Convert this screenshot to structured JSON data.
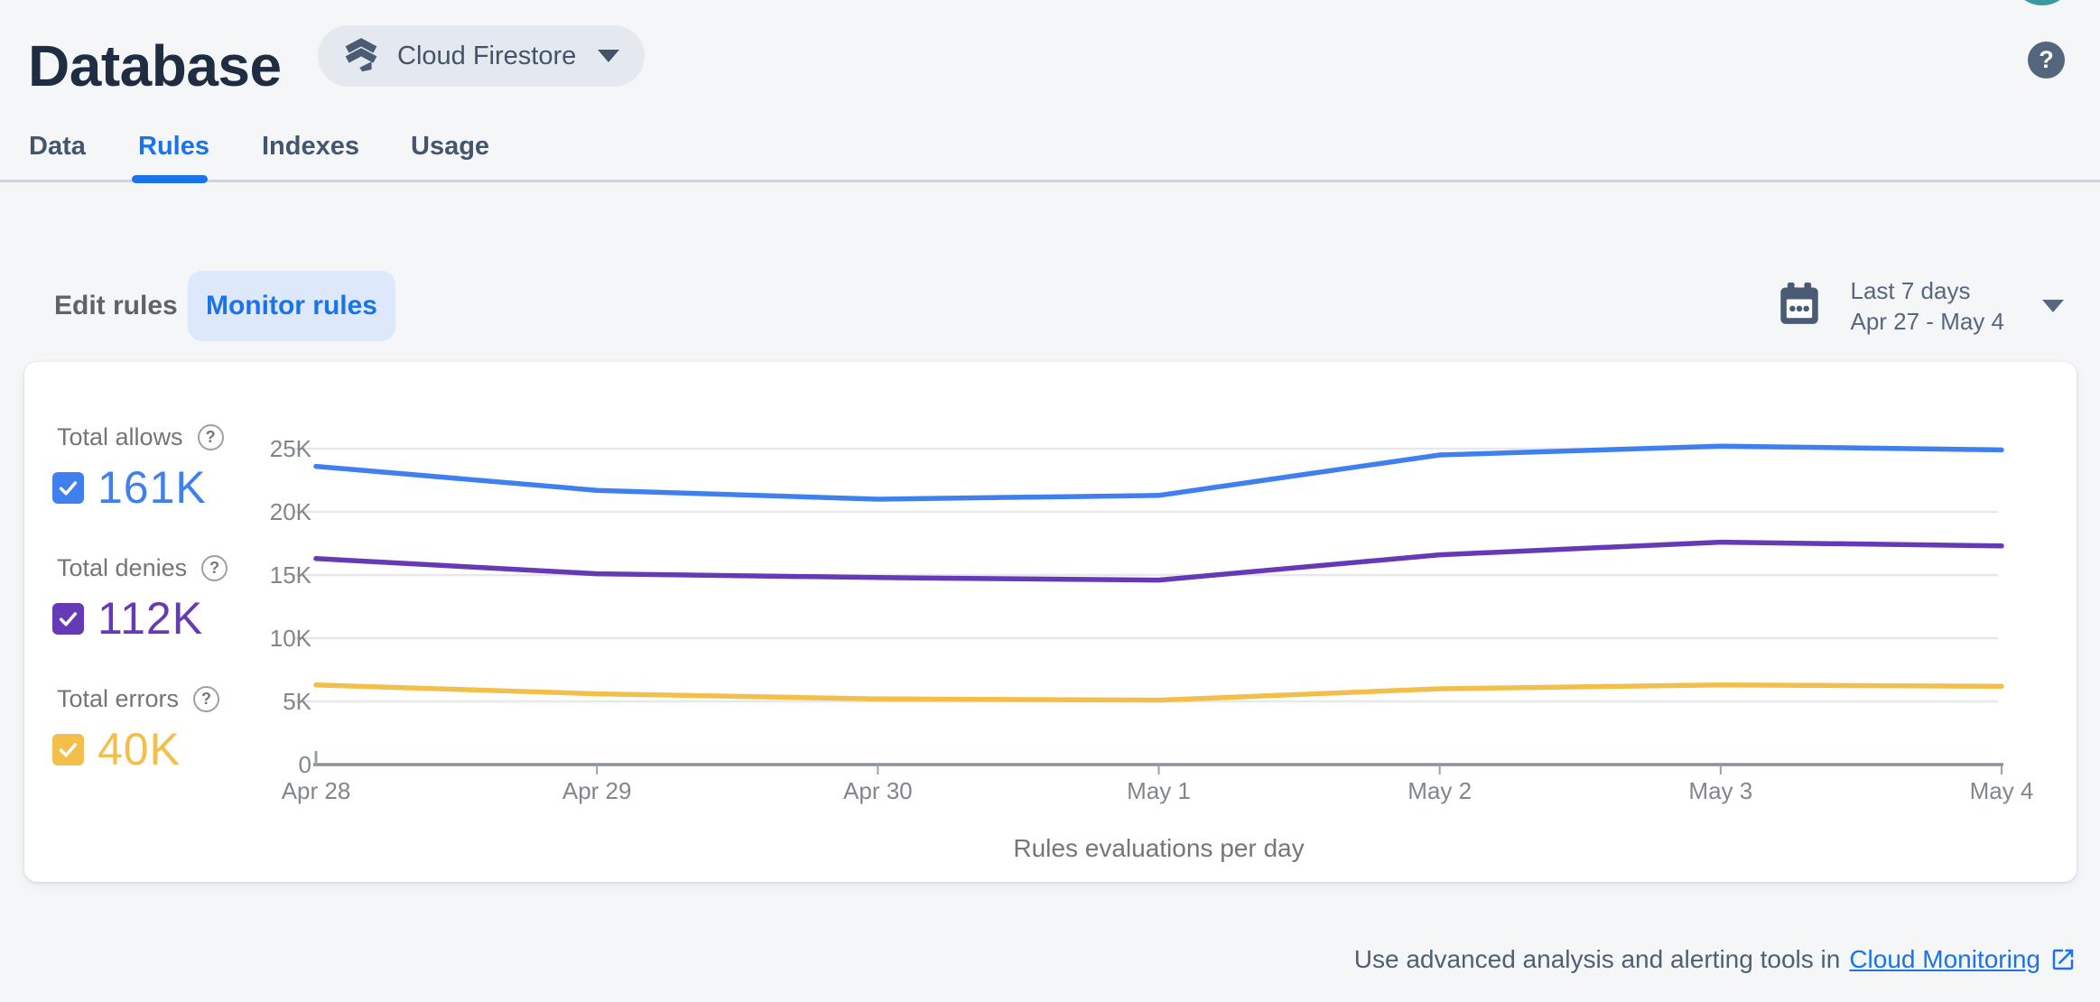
{
  "header": {
    "title": "Database",
    "database_chip": {
      "label": "Cloud Firestore"
    },
    "help_glyph": "?"
  },
  "tabs": [
    {
      "label": "Data",
      "active": false
    },
    {
      "label": "Rules",
      "active": true
    },
    {
      "label": "Indexes",
      "active": false
    },
    {
      "label": "Usage",
      "active": false
    }
  ],
  "toolbar": {
    "edit_rules_label": "Edit rules",
    "monitor_rules_label": "Monitor rules",
    "date_range": {
      "preset": "Last 7 days",
      "range": "Apr 27 - May 4"
    }
  },
  "legend": [
    {
      "label": "Total allows",
      "value": "161K",
      "color": "#4080ee",
      "help_glyph": "?"
    },
    {
      "label": "Total denies",
      "value": "112K",
      "color": "#6639b6",
      "help_glyph": "?"
    },
    {
      "label": "Total errors",
      "value": "40K",
      "color": "#f2c04a",
      "help_glyph": "?"
    }
  ],
  "chart_data": {
    "type": "line",
    "title": "Rules evaluations per day",
    "categories": [
      "Apr 28",
      "Apr 29",
      "Apr 30",
      "May 1",
      "May 2",
      "May 3",
      "May 4"
    ],
    "series": [
      {
        "name": "Total allows",
        "color": "#4080ee",
        "values": [
          23600,
          21700,
          21000,
          21300,
          24500,
          25200,
          24900
        ]
      },
      {
        "name": "Total denies",
        "color": "#6639b6",
        "values": [
          16300,
          15100,
          14800,
          14600,
          16600,
          17600,
          17300
        ]
      },
      {
        "name": "Total errors",
        "color": "#f2c04a",
        "values": [
          6300,
          5600,
          5200,
          5100,
          6000,
          6300,
          6200
        ]
      }
    ],
    "yticks": [
      0,
      5000,
      10000,
      15000,
      20000,
      25000
    ],
    "ytick_labels": [
      "0",
      "5K",
      "10K",
      "15K",
      "20K",
      "25K"
    ],
    "ylim": [
      0,
      25000
    ],
    "xlabel": "",
    "ylabel": "",
    "grid": true,
    "legend_position": "left"
  },
  "footer": {
    "text": "Use advanced analysis and alerting tools in",
    "link_label": "Cloud Monitoring"
  }
}
